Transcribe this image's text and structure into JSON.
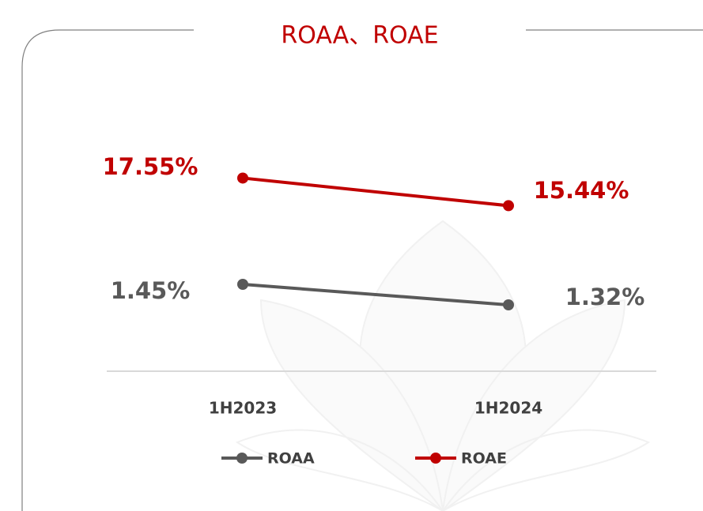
{
  "chart_data": {
    "type": "line",
    "title": "ROAA、ROAE",
    "categories": [
      "1H2023",
      "1H2024"
    ],
    "series": [
      {
        "name": "ROAA",
        "color": "#595959",
        "values": [
          1.45,
          1.32
        ],
        "value_labels": [
          "1.45%",
          "1.32%"
        ]
      },
      {
        "name": "ROAE",
        "color": "#c00000",
        "axis": "y2",
        "values": [
          17.55,
          15.44
        ],
        "value_labels": [
          "17.55%",
          "15.44%"
        ]
      }
    ],
    "ylim": [
      0.9,
      2.5
    ],
    "y2lim": [
      2.8,
      22.1
    ]
  }
}
